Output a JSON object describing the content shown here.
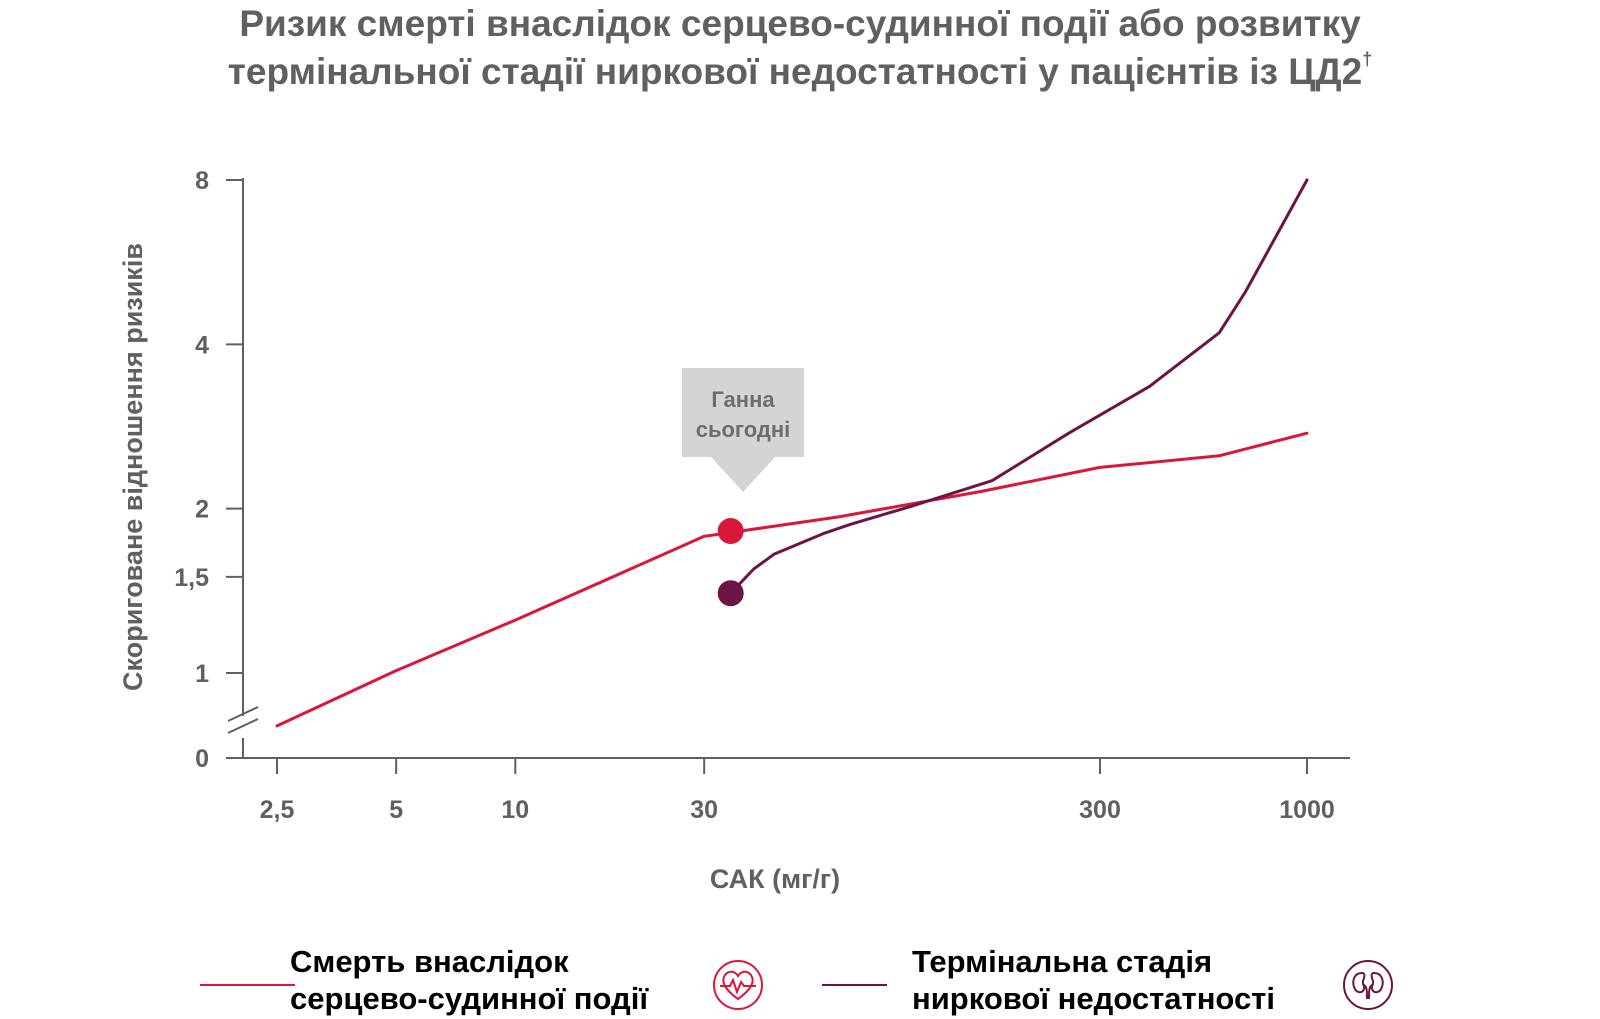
{
  "title": {
    "line1": "Ризик смерті внаслідок серцево-судинної події або розвитку",
    "line2": "термінальної стадії ниркової недостатності у пацієнтів із ЦД2",
    "footnote_mark": "†"
  },
  "chart_data": {
    "type": "line",
    "xlabel": "САК (мг/г)",
    "ylabel": "Скориговане відношення ризиків",
    "x_scale": "log",
    "y_scale": "log (axis break below 1)",
    "x_ticks": [
      {
        "label": "2,5",
        "value": 2.5
      },
      {
        "label": "5",
        "value": 5
      },
      {
        "label": "10",
        "value": 10
      },
      {
        "label": "30",
        "value": 30
      },
      {
        "label": "300",
        "value": 300
      },
      {
        "label": "1000",
        "value": 1000
      }
    ],
    "y_ticks": [
      {
        "label": "8",
        "value": 8
      },
      {
        "label": "4",
        "value": 4
      },
      {
        "label": "2",
        "value": 2
      },
      {
        "label": "1,5",
        "value": 1.5
      },
      {
        "label": "1",
        "value": 1
      },
      {
        "label": "0",
        "value": 0
      }
    ],
    "series": [
      {
        "name": "Смерть внаслідок серцево-судинної події",
        "color": "#d9173a",
        "points": [
          [
            2.5,
            0.8
          ],
          [
            5,
            1.01
          ],
          [
            10,
            1.25
          ],
          [
            30,
            1.78
          ],
          [
            65,
            1.93
          ],
          [
            150,
            2.15
          ],
          [
            300,
            2.38
          ],
          [
            600,
            2.5
          ],
          [
            1000,
            2.75
          ]
        ]
      },
      {
        "name": "Термінальна стадія ниркової недостатності",
        "color": "#6b1445",
        "points": [
          [
            35,
            1.4
          ],
          [
            40,
            1.55
          ],
          [
            45,
            1.65
          ],
          [
            60,
            1.8
          ],
          [
            70,
            1.87
          ],
          [
            100,
            2.02
          ],
          [
            160,
            2.25
          ],
          [
            250,
            2.75
          ],
          [
            400,
            3.35
          ],
          [
            600,
            4.2
          ],
          [
            700,
            5.0
          ],
          [
            1000,
            8.0
          ]
        ]
      }
    ],
    "highlight_points": [
      {
        "series": "Смерть внаслідок серцево-судинної події",
        "x": 35,
        "y": 1.82,
        "color": "#d9173a"
      },
      {
        "series": "Термінальна стадія ниркової недостатності",
        "x": 35,
        "y": 1.4,
        "color": "#6b1445"
      }
    ],
    "annotation": {
      "line1": "Ганна",
      "line2": "сьогодні",
      "x": 35,
      "background": "#d4d4d4"
    }
  },
  "legend": [
    {
      "line1": "Смерть внаслідок",
      "line2": "серцево-судинної події",
      "color": "#d9173a",
      "icon": "heart-pulse-icon"
    },
    {
      "line1": "Термінальна стадія",
      "line2": "ниркової недостатності",
      "color": "#6b1445",
      "icon": "kidneys-icon"
    }
  ],
  "colors": {
    "text": "#5f6062",
    "axis": "#5f6062",
    "cv_red": "#d9173a",
    "renal_purple": "#6b1445"
  }
}
